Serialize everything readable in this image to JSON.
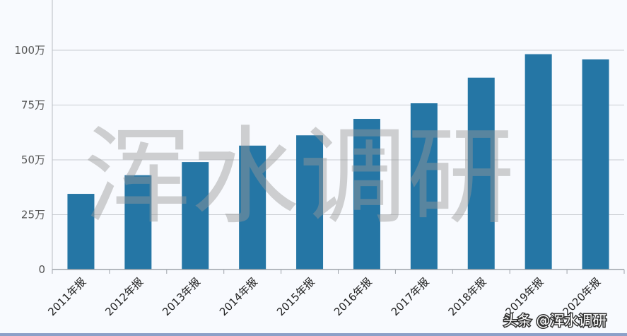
{
  "chart_data": {
    "type": "bar",
    "title": "",
    "xlabel": "",
    "ylabel": "",
    "categories": [
      "2011年报",
      "2012年报",
      "2013年报",
      "2014年报",
      "2015年报",
      "2016年报",
      "2017年报",
      "2018年报",
      "2019年报",
      "2020年报"
    ],
    "values": [
      345000,
      430000,
      490000,
      565000,
      612000,
      687000,
      758000,
      875000,
      982000,
      958000
    ],
    "ylim": [
      0,
      1250000
    ],
    "yticks": [
      0,
      250000,
      500000,
      750000,
      1000000
    ],
    "ytick_labels": [
      "0",
      "25万",
      "50万",
      "75万",
      "100万"
    ],
    "grid": true,
    "bar_color": "#2576a5"
  },
  "watermark": {
    "main": "浑水调研",
    "credit": "头条 @浑水调研"
  }
}
